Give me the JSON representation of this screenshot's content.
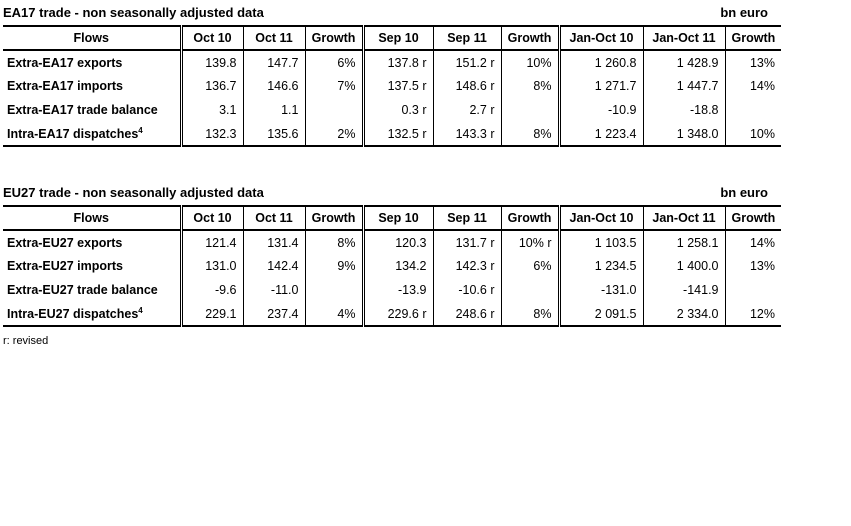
{
  "footnote": "r: revised",
  "tables": [
    {
      "title": "EA17 trade - non seasonally adjusted data",
      "unit": "bn euro",
      "headers": [
        "Flows",
        "Oct 10",
        "Oct 11",
        "Growth",
        "Sep 10",
        "Sep 11",
        "Growth",
        "Jan-Oct 10",
        "Jan-Oct 11",
        "Growth"
      ],
      "rows": [
        {
          "label": "Extra-EA17 exports",
          "label_sup": "",
          "values": [
            "139.8",
            "147.7",
            "6%",
            "137.8 r",
            "151.2 r",
            "10%",
            "1 260.8",
            "1 428.9",
            "13%"
          ]
        },
        {
          "label": "Extra-EA17 imports",
          "label_sup": "",
          "values": [
            "136.7",
            "146.6",
            "7%",
            "137.5 r",
            "148.6 r",
            "8%",
            "1 271.7",
            "1 447.7",
            "14%"
          ]
        },
        {
          "label": "Extra-EA17 trade balance",
          "label_sup": "",
          "values": [
            "3.1",
            "1.1",
            "",
            "0.3 r",
            "2.7 r",
            "",
            "-10.9",
            "-18.8",
            ""
          ]
        },
        {
          "label": "Intra-EA17 dispatches",
          "label_sup": "4",
          "values": [
            "132.3",
            "135.6",
            "2%",
            "132.5 r",
            "143.3 r",
            "8%",
            "1 223.4",
            "1 348.0",
            "10%"
          ]
        }
      ]
    },
    {
      "title": "EU27 trade - non seasonally adjusted data",
      "unit": "bn euro",
      "headers": [
        "Flows",
        "Oct 10",
        "Oct 11",
        "Growth",
        "Sep 10",
        "Sep 11",
        "Growth",
        "Jan-Oct 10",
        "Jan-Oct 11",
        "Growth"
      ],
      "rows": [
        {
          "label": "Extra-EU27 exports",
          "label_sup": "",
          "values": [
            "121.4",
            "131.4",
            "8%",
            "120.3",
            "131.7 r",
            "10% r",
            "1 103.5",
            "1 258.1",
            "14%"
          ]
        },
        {
          "label": "Extra-EU27 imports",
          "label_sup": "",
          "values": [
            "131.0",
            "142.4",
            "9%",
            "134.2",
            "142.3 r",
            "6%",
            "1 234.5",
            "1 400.0",
            "13%"
          ]
        },
        {
          "label": "Extra-EU27 trade balance",
          "label_sup": "",
          "values": [
            "-9.6",
            "-11.0",
            "",
            "-13.9",
            "-10.6 r",
            "",
            "-131.0",
            "-141.9",
            ""
          ]
        },
        {
          "label": "Intra-EU27 dispatches",
          "label_sup": "4",
          "values": [
            "229.1",
            "237.4",
            "4%",
            "229.6 r",
            "248.6 r",
            "8%",
            "2 091.5",
            "2 334.0",
            "12%"
          ]
        }
      ]
    }
  ]
}
